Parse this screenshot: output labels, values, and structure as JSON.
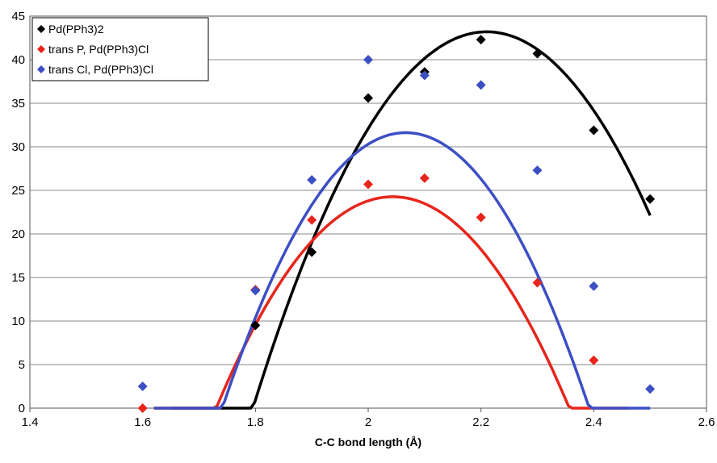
{
  "chart_data": {
    "type": "scatter",
    "xlabel": "C-C bond length (Å)",
    "ylabel": "",
    "xlim": [
      1.4,
      2.6
    ],
    "ylim": [
      0,
      45
    ],
    "xticks": [
      "1.4",
      "1.6",
      "1.8",
      "2",
      "2.2",
      "2.4",
      "2.6"
    ],
    "yticks": [
      "0",
      "5",
      "10",
      "15",
      "20",
      "25",
      "30",
      "35",
      "40",
      "45"
    ],
    "grid": "horizontal",
    "legend_position": "top-left",
    "series": [
      {
        "name": "Pd(PPh3)2",
        "color": "#000000",
        "marker": "diamond",
        "points": [
          [
            1.8,
            9.5
          ],
          [
            1.9,
            17.9
          ],
          [
            2.0,
            35.6
          ],
          [
            2.1,
            38.6
          ],
          [
            2.2,
            42.3
          ],
          [
            2.3,
            40.7
          ],
          [
            2.4,
            31.9
          ],
          [
            2.5,
            24.0
          ]
        ],
        "trendline": {
          "type": "polynomial",
          "x_start": 1.65,
          "x_end": 2.5,
          "coeffs": [
            -1183.5,
            1110.0,
            -251.1
          ]
        }
      },
      {
        "name": "trans P, Pd(PPh3)Cl",
        "color": "#e8251b",
        "marker": "diamond",
        "points": [
          [
            1.6,
            0.0
          ],
          [
            1.8,
            13.6
          ],
          [
            1.9,
            21.6
          ],
          [
            2.0,
            25.7
          ],
          [
            2.1,
            26.4
          ],
          [
            2.2,
            21.9
          ],
          [
            2.3,
            14.4
          ],
          [
            2.4,
            5.5
          ]
        ],
        "trendline": {
          "type": "polynomial",
          "x_start": 1.62,
          "x_end": 2.46,
          "coeffs": [
            -1009.8,
            1012.0,
            -247.6
          ]
        }
      },
      {
        "name": "trans Cl, Pd(PPh3)Cl",
        "color": "#3d4fc4",
        "marker": "diamond",
        "points": [
          [
            1.6,
            2.5
          ],
          [
            1.8,
            13.5
          ],
          [
            1.9,
            26.2
          ],
          [
            2.0,
            40.0
          ],
          [
            2.1,
            38.2
          ],
          [
            2.2,
            37.1
          ],
          [
            2.3,
            27.3
          ],
          [
            2.4,
            14.0
          ],
          [
            2.5,
            2.2
          ]
        ],
        "trendline": {
          "type": "polynomial",
          "x_start": 1.62,
          "x_end": 2.5,
          "coeffs": [
            -1244.1,
            1234.6,
            -298.7
          ]
        }
      }
    ]
  }
}
